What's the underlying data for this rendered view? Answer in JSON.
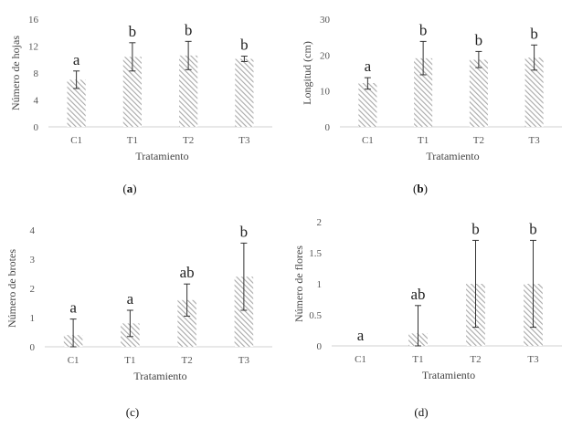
{
  "chart_data": [
    {
      "type": "bar",
      "panel_label": "(a)",
      "categories": [
        "C1",
        "T1",
        "T2",
        "T3"
      ],
      "values": [
        7.0,
        10.4,
        10.6,
        10.1
      ],
      "error_lower": [
        5.7,
        8.3,
        8.5,
        9.7
      ],
      "error_upper": [
        8.3,
        12.5,
        12.7,
        10.5
      ],
      "significance": [
        "a",
        "b",
        "b",
        "b"
      ],
      "ylim": [
        0,
        16
      ],
      "yticks": [
        0,
        4,
        8,
        12,
        16
      ],
      "xlabel": "Tratamiento",
      "ylabel": "Número de hojas"
    },
    {
      "type": "bar",
      "panel_label": "(b)",
      "categories": [
        "C1",
        "T1",
        "T2",
        "T3"
      ],
      "values": [
        12.2,
        19.1,
        18.7,
        19.3
      ],
      "error_lower": [
        10.5,
        14.5,
        16.5,
        15.8
      ],
      "error_upper": [
        13.7,
        23.8,
        21.0,
        22.8
      ],
      "significance": [
        "a",
        "b",
        "b",
        "b"
      ],
      "ylim": [
        0,
        30
      ],
      "yticks": [
        0,
        10,
        20,
        30
      ],
      "xlabel": "Tratamiento",
      "ylabel": "Longitud (cm)"
    },
    {
      "type": "bar",
      "panel_label": "(c)",
      "categories": [
        "C1",
        "T1",
        "T2",
        "T3"
      ],
      "values": [
        0.4,
        0.8,
        1.6,
        2.4
      ],
      "error_lower": [
        0.0,
        0.35,
        1.05,
        1.25
      ],
      "error_upper": [
        0.95,
        1.25,
        2.15,
        3.55
      ],
      "significance": [
        "a",
        "a",
        "ab",
        "b"
      ],
      "ylim": [
        0,
        4
      ],
      "yticks": [
        0,
        1,
        2,
        3,
        4
      ],
      "xlabel": "Tratamiento",
      "ylabel": "Número de brotes"
    },
    {
      "type": "bar",
      "panel_label": "(d)",
      "categories": [
        "C1",
        "T1",
        "T2",
        "T3"
      ],
      "values": [
        0.0,
        0.2,
        1.0,
        1.0
      ],
      "error_lower": [
        null,
        0.0,
        0.3,
        0.3
      ],
      "error_upper": [
        null,
        0.65,
        1.7,
        1.7
      ],
      "significance": [
        "a",
        "ab",
        "b",
        "b"
      ],
      "ylim": [
        0,
        2
      ],
      "yticks": [
        0,
        0.5,
        1,
        1.5,
        2
      ],
      "xlabel": "Tratamiento",
      "ylabel": "Número de flores"
    }
  ]
}
